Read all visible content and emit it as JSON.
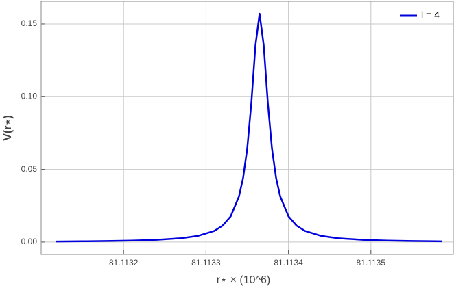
{
  "chart_data": {
    "type": "line",
    "xlabel": "r⋆ × (10^6)",
    "ylabel": "V(r⋆)",
    "x": [
      81.113118,
      81.11315,
      81.11318,
      81.11321,
      81.11324,
      81.11327,
      81.11329,
      81.11331,
      81.11332,
      81.11333,
      81.11334,
      81.113345,
      81.11335,
      81.113355,
      81.11336,
      81.113365,
      81.11337,
      81.113375,
      81.11338,
      81.113385,
      81.11339,
      81.1134,
      81.11341,
      81.11342,
      81.11344,
      81.11346,
      81.11349,
      81.11352,
      81.11355,
      81.113586
    ],
    "series": [
      {
        "name": "l = 4",
        "color": "#0000dd",
        "values": [
          0.0004,
          0.00053,
          0.00071,
          0.00101,
          0.00155,
          0.00267,
          0.00424,
          0.00771,
          0.01125,
          0.01776,
          0.0314,
          0.0441,
          0.0643,
          0.0957,
          0.1353,
          0.157,
          0.1353,
          0.0957,
          0.0643,
          0.0441,
          0.0314,
          0.01776,
          0.01125,
          0.00771,
          0.00424,
          0.00267,
          0.00155,
          0.00101,
          0.00071,
          0.0005
        ]
      }
    ],
    "xlim": [
      81.1131,
      81.1136
    ],
    "ylim": [
      -0.0085,
      0.1655
    ],
    "xticks": [
      81.1132,
      81.1133,
      81.1134,
      81.1135
    ],
    "yticks": [
      {
        "value": 0,
        "label": "0.00"
      },
      {
        "value": 0.05,
        "label": "0.05"
      },
      {
        "value": 0.1,
        "label": "0.10"
      },
      {
        "value": 0.15,
        "label": "0.15"
      }
    ],
    "grid": true,
    "legend": "upper right"
  }
}
